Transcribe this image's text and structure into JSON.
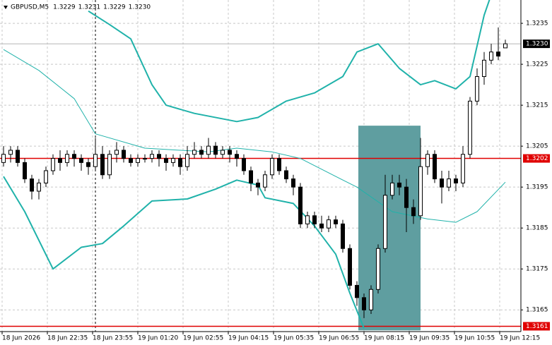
{
  "chart_data": {
    "type": "candlestick",
    "title": "GBPUSD,M5",
    "quote": [
      "1.3229",
      "1.3231",
      "1.3229",
      "1.3230"
    ],
    "candles": [
      [
        1.3201,
        1.3205,
        1.32,
        1.3203
      ],
      [
        1.3203,
        1.3205,
        1.3201,
        1.3204
      ],
      [
        1.3204,
        1.3205,
        1.32,
        1.3201
      ],
      [
        1.3201,
        1.3202,
        1.3196,
        1.3197
      ],
      [
        1.3197,
        1.3198,
        1.3192,
        1.3194
      ],
      [
        1.3194,
        1.3197,
        1.3192,
        1.3196
      ],
      [
        1.3196,
        1.32,
        1.3195,
        1.3199
      ],
      [
        1.3199,
        1.3203,
        1.3198,
        1.3202
      ],
      [
        1.3202,
        1.3204,
        1.3199,
        1.3201
      ],
      [
        1.3201,
        1.3204,
        1.32,
        1.3203
      ],
      [
        1.3203,
        1.3204,
        1.32,
        1.3202
      ],
      [
        1.3202,
        1.3203,
        1.3199,
        1.3201
      ],
      [
        1.3201,
        1.3202,
        1.3198,
        1.32
      ],
      [
        1.32,
        1.3207,
        1.3199,
        1.3203
      ],
      [
        1.3203,
        1.3205,
        1.3197,
        1.3198
      ],
      [
        1.3198,
        1.3204,
        1.3197,
        1.3203
      ],
      [
        1.3203,
        1.3206,
        1.3201,
        1.3204
      ],
      [
        1.3204,
        1.3205,
        1.3201,
        1.3202
      ],
      [
        1.3202,
        1.3203,
        1.32,
        1.3201
      ],
      [
        1.3201,
        1.3203,
        1.32,
        1.3202
      ],
      [
        1.3202,
        1.3203,
        1.3201,
        1.3202
      ],
      [
        1.3202,
        1.3204,
        1.3201,
        1.3203
      ],
      [
        1.3203,
        1.3204,
        1.32,
        1.3202
      ],
      [
        1.3202,
        1.3203,
        1.3199,
        1.3201
      ],
      [
        1.3201,
        1.3203,
        1.32,
        1.3202
      ],
      [
        1.3202,
        1.3203,
        1.3198,
        1.32
      ],
      [
        1.32,
        1.3205,
        1.3199,
        1.3203
      ],
      [
        1.3203,
        1.3206,
        1.3202,
        1.3204
      ],
      [
        1.3204,
        1.3205,
        1.3202,
        1.3203
      ],
      [
        1.3203,
        1.3207,
        1.3202,
        1.3205
      ],
      [
        1.3205,
        1.3206,
        1.3202,
        1.3203
      ],
      [
        1.3203,
        1.3205,
        1.3202,
        1.3204
      ],
      [
        1.3204,
        1.3205,
        1.3201,
        1.3203
      ],
      [
        1.3203,
        1.3204,
        1.32,
        1.3202
      ],
      [
        1.3202,
        1.3203,
        1.3198,
        1.3199
      ],
      [
        1.3199,
        1.32,
        1.3194,
        1.3196
      ],
      [
        1.3196,
        1.3197,
        1.3193,
        1.3195
      ],
      [
        1.3195,
        1.3199,
        1.3194,
        1.3198
      ],
      [
        1.3198,
        1.3203,
        1.3197,
        1.3202
      ],
      [
        1.3202,
        1.3203,
        1.3198,
        1.3199
      ],
      [
        1.3199,
        1.32,
        1.3196,
        1.3197
      ],
      [
        1.3197,
        1.3198,
        1.3193,
        1.3195
      ],
      [
        1.3195,
        1.3196,
        1.3185,
        1.3186
      ],
      [
        1.3186,
        1.3189,
        1.3185,
        1.3188
      ],
      [
        1.3188,
        1.3189,
        1.3185,
        1.3186
      ],
      [
        1.3186,
        1.3188,
        1.3184,
        1.3185
      ],
      [
        1.3185,
        1.3188,
        1.3184,
        1.3187
      ],
      [
        1.3187,
        1.3188,
        1.3185,
        1.3186
      ],
      [
        1.3186,
        1.3187,
        1.3179,
        1.318
      ],
      [
        1.318,
        1.3181,
        1.317,
        1.3171
      ],
      [
        1.3171,
        1.3172,
        1.3166,
        1.3168
      ],
      [
        1.3168,
        1.3169,
        1.3163,
        1.3165
      ],
      [
        1.3165,
        1.3171,
        1.3164,
        1.317
      ],
      [
        1.317,
        1.3181,
        1.3169,
        1.318
      ],
      [
        1.318,
        1.3198,
        1.3179,
        1.3193
      ],
      [
        1.3193,
        1.3198,
        1.3192,
        1.3196
      ],
      [
        1.3196,
        1.3198,
        1.3193,
        1.3195
      ],
      [
        1.3195,
        1.3197,
        1.3184,
        1.319
      ],
      [
        1.319,
        1.3192,
        1.3186,
        1.3188
      ],
      [
        1.3188,
        1.3207,
        1.3187,
        1.32
      ],
      [
        1.32,
        1.3204,
        1.3198,
        1.3203
      ],
      [
        1.3203,
        1.3204,
        1.3196,
        1.3197
      ],
      [
        1.3197,
        1.3199,
        1.3191,
        1.3195
      ],
      [
        1.3195,
        1.3199,
        1.3194,
        1.3197
      ],
      [
        1.3197,
        1.3198,
        1.3194,
        1.3196
      ],
      [
        1.3196,
        1.3205,
        1.3195,
        1.3203
      ],
      [
        1.3203,
        1.3217,
        1.3202,
        1.3216
      ],
      [
        1.3216,
        1.3224,
        1.3215,
        1.3222
      ],
      [
        1.3222,
        1.3228,
        1.322,
        1.3226
      ],
      [
        1.3226,
        1.323,
        1.3225,
        1.3228
      ],
      [
        1.3228,
        1.3234,
        1.3226,
        1.3227
      ],
      [
        1.3229,
        1.3231,
        1.3229,
        1.323
      ]
    ],
    "bands": [
      {
        "name": "upper",
        "color": "#20b2aa",
        "x": [
          12,
          15,
          18,
          21,
          23,
          27,
          33,
          36,
          40,
          44,
          48,
          50,
          53,
          56,
          59,
          61,
          64,
          66,
          68,
          69
        ],
        "values": [
          1.3238,
          1.32347,
          1.32312,
          1.322,
          1.3215,
          1.3213,
          1.3211,
          1.3212,
          1.3216,
          1.3218,
          1.3222,
          1.3228,
          1.323,
          1.3224,
          1.322,
          1.3221,
          1.3219,
          1.3222,
          1.3237,
          1.3242
        ]
      },
      {
        "name": "middle",
        "color": "#20b2aa",
        "x": [
          0,
          5,
          10,
          13,
          20,
          29,
          33,
          38,
          42,
          47,
          50,
          55,
          60,
          64,
          67,
          71
        ],
        "values": [
          1.32286,
          1.32235,
          1.32166,
          1.3208,
          1.32045,
          1.32036,
          1.32045,
          1.32036,
          1.3202,
          1.31976,
          1.3195,
          1.3189,
          1.31872,
          1.31864,
          1.3189,
          1.31962
        ]
      },
      {
        "name": "lower",
        "color": "#20b2aa",
        "x": [
          0,
          3,
          7,
          11,
          14,
          17,
          21,
          26,
          30,
          33,
          36,
          37,
          41,
          44,
          47,
          49,
          51
        ],
        "values": [
          1.31976,
          1.3189,
          1.3175,
          1.31803,
          1.31812,
          1.31855,
          1.31916,
          1.31921,
          1.31945,
          1.31967,
          1.31955,
          1.31924,
          1.3191,
          1.31855,
          1.31786,
          1.31691,
          1.31605
        ]
      }
    ],
    "levels": [
      {
        "value": 1.323,
        "label": "1.3230",
        "color": "#000000"
      },
      {
        "value": 1.3202,
        "label": "1.3202",
        "color": "#e00000"
      },
      {
        "value": 1.3161,
        "label": "1.3161",
        "color": "#e00000"
      }
    ],
    "zone": {
      "x": [
        50.2,
        59
      ],
      "y": [
        1.321,
        1.316
      ],
      "color": "#5f9ea0"
    },
    "xlim": [
      -0.5,
      73.2
    ],
    "ylim": [
      1.31597,
      1.32407
    ],
    "yticks": [
      1.3165,
      1.3175,
      1.3185,
      1.3195,
      1.3205,
      1.3215,
      1.3225,
      1.3235
    ],
    "xticks": [
      {
        "value": -0.2,
        "label": "18 Jun 2026"
      },
      {
        "value": 6.2,
        "label": "18 Jun 22:35"
      },
      {
        "value": 12.6,
        "label": "18 Jun 23:55"
      },
      {
        "value": 19,
        "label": "19 Jun 01:20"
      },
      {
        "value": 25.4,
        "label": "19 Jun 02:55"
      },
      {
        "value": 31.8,
        "label": "19 Jun 04:15"
      },
      {
        "value": 38.2,
        "label": "19 Jun 05:35"
      },
      {
        "value": 44.6,
        "label": "19 Jun 06:55"
      },
      {
        "value": 51,
        "label": "19 Jun 08:15"
      },
      {
        "value": 57.4,
        "label": "19 Jun 09:35"
      },
      {
        "value": 63.8,
        "label": "19 Jun 10:55"
      },
      {
        "value": 70.2,
        "label": "19 Jun 12:15"
      }
    ],
    "grid": true
  }
}
